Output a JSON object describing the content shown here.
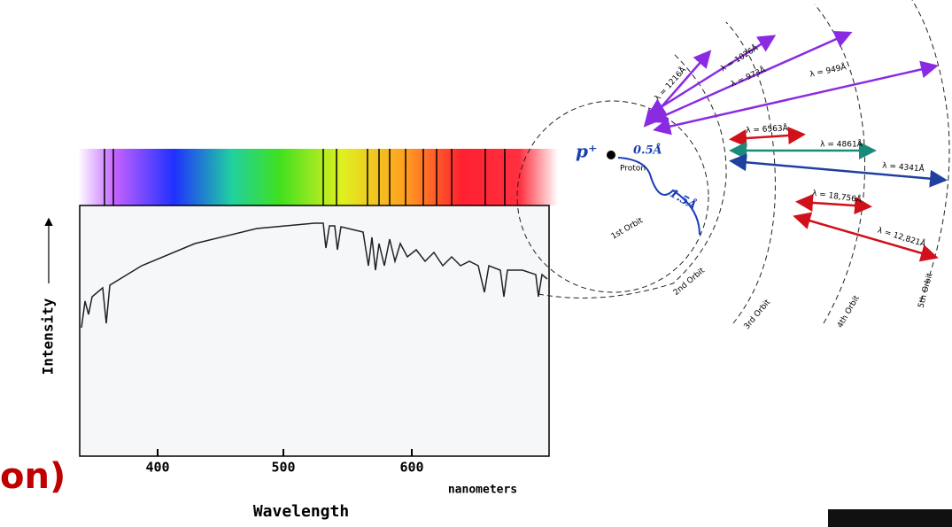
{
  "slide": {
    "title_fragment": "on)"
  },
  "spectrum": {
    "y_label": "Intensity",
    "x_label": "Wavelength",
    "unit": "nanometers",
    "x_ticks": [
      "400",
      "500",
      "600"
    ]
  },
  "bohr": {
    "proton_symbol": "p⁺",
    "proton_label": "Proton",
    "radius_1": "0.5Å",
    "radius_2": "1.5Å",
    "orbits": [
      "1st Orbit",
      "2nd Orbit",
      "3rd Orbit",
      "4th Orbit",
      "5th Orbit"
    ],
    "transitions": [
      {
        "label": "λ = 1216Å",
        "color": "#8a2be2"
      },
      {
        "label": "λ = 1026Å",
        "color": "#8a2be2"
      },
      {
        "label": "λ = 973Å",
        "color": "#8a2be2"
      },
      {
        "label": "λ = 949Å",
        "color": "#8a2be2"
      },
      {
        "label": "λ = 6563Å",
        "color": "#d0101a"
      },
      {
        "label": "λ = 4861Å",
        "color": "#1a8a7a"
      },
      {
        "label": "λ = 4341Å",
        "color": "#2040a0"
      },
      {
        "label": "λ = 18,756Å",
        "color": "#d0101a"
      },
      {
        "label": "λ = 12,821Å",
        "color": "#d0101a"
      }
    ]
  }
}
